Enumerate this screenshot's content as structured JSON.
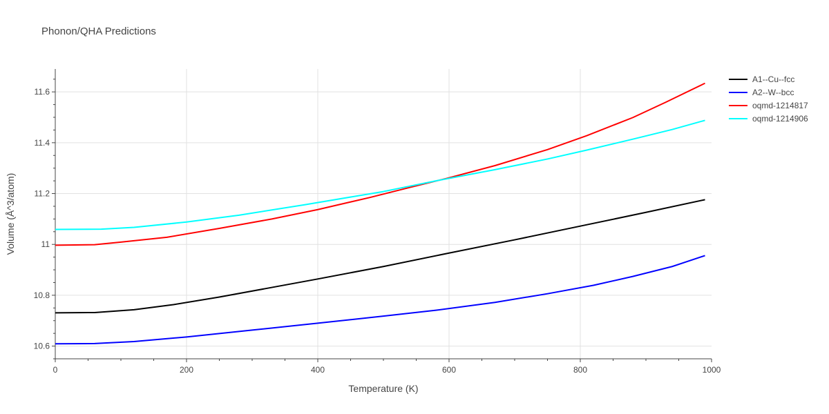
{
  "chart_data": {
    "type": "line",
    "title": "Phonon/QHA Predictions",
    "xlabel": "Temperature (K)",
    "ylabel": "Volume (Å^3/atom)",
    "xlim": [
      0,
      1000
    ],
    "ylim": [
      10.55,
      11.69
    ],
    "x_ticks": [
      0,
      200,
      400,
      600,
      800,
      1000
    ],
    "x_tick_labels": [
      "0",
      "200",
      "400",
      "600",
      "800",
      "1000"
    ],
    "y_ticks": [
      10.6,
      10.8,
      11,
      11.2,
      11.4,
      11.6
    ],
    "y_tick_labels": [
      "10.6",
      "10.8",
      "11",
      "11.2",
      "11.4",
      "11.6"
    ],
    "grid": true,
    "legend_position": "top-right",
    "series": [
      {
        "name": "A1--Cu--fcc",
        "color": "#000000",
        "x": [
          0,
          60,
          120,
          180,
          250,
          320,
          400,
          500,
          600,
          700,
          800,
          900,
          990
        ],
        "y": [
          10.731,
          10.732,
          10.743,
          10.763,
          10.793,
          10.826,
          10.864,
          10.913,
          10.966,
          11.018,
          11.072,
          11.126,
          11.176
        ]
      },
      {
        "name": "A2--W--bcc",
        "color": "#0000ff",
        "x": [
          0,
          60,
          120,
          200,
          300,
          400,
          500,
          580,
          670,
          750,
          820,
          880,
          940,
          990
        ],
        "y": [
          10.609,
          10.61,
          10.618,
          10.636,
          10.663,
          10.69,
          10.718,
          10.741,
          10.772,
          10.806,
          10.839,
          10.874,
          10.913,
          10.956
        ]
      },
      {
        "name": "oqmd-1214817",
        "color": "#ff0000",
        "x": [
          0,
          60,
          100,
          170,
          250,
          330,
          400,
          480,
          540,
          600,
          670,
          750,
          810,
          880,
          930,
          990
        ],
        "y": [
          10.997,
          10.999,
          11.009,
          11.028,
          11.063,
          11.1,
          11.137,
          11.185,
          11.224,
          11.262,
          11.31,
          11.373,
          11.428,
          11.499,
          11.559,
          11.634
        ]
      },
      {
        "name": "oqmd-1214906",
        "color": "#00ffff",
        "x": [
          0,
          70,
          120,
          200,
          280,
          380,
          500,
          580,
          670,
          750,
          810,
          880,
          940,
          990
        ],
        "y": [
          11.059,
          11.06,
          11.067,
          11.088,
          11.115,
          11.156,
          11.208,
          11.25,
          11.294,
          11.336,
          11.371,
          11.414,
          11.452,
          11.488
        ]
      }
    ]
  }
}
